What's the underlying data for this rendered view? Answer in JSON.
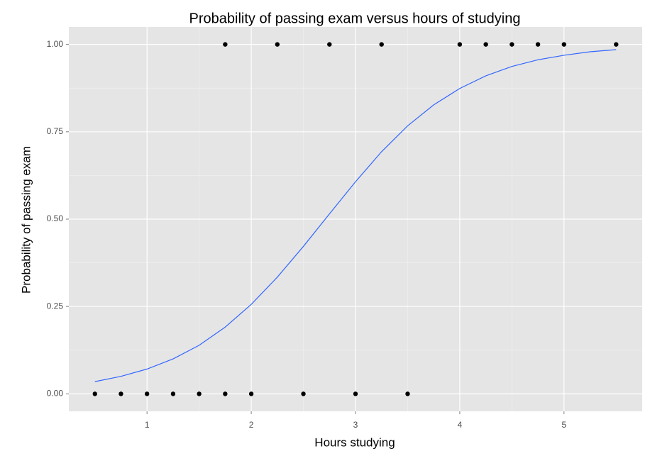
{
  "chart_data": {
    "type": "scatter",
    "title": "Probability of passing exam versus hours of studying",
    "x_label": "Hours studying",
    "y_label": "Probability of passing exam",
    "xlim": [
      0.25,
      5.75
    ],
    "xticks": [
      1,
      2,
      3,
      4,
      5
    ],
    "ylim": [
      -0.05,
      1.05
    ],
    "yticks": [
      {
        "value": 0,
        "label": "0.00"
      },
      {
        "value": 0.25,
        "label": "0.25"
      },
      {
        "value": 0.5,
        "label": "0.50"
      },
      {
        "value": 0.75,
        "label": "0.75"
      },
      {
        "value": 1,
        "label": "1.00"
      }
    ],
    "grid": true,
    "series": [
      {
        "type": "scatter",
        "color": "#000000",
        "x": [
          0.5,
          0.75,
          1.0,
          1.25,
          1.5,
          1.75,
          1.75,
          2.0,
          2.25,
          2.5,
          2.75,
          3.0,
          3.25,
          3.5,
          4.0,
          4.25,
          4.5,
          4.75,
          5.0,
          5.5
        ],
        "values": [
          0,
          0,
          0,
          0,
          0,
          0,
          1,
          0,
          1,
          0,
          1,
          0,
          1,
          0,
          1,
          1,
          1,
          1,
          1,
          1
        ]
      },
      {
        "type": "line",
        "color": "#3366ff",
        "x": [
          0.5,
          0.75,
          1.0,
          1.25,
          1.5,
          1.75,
          2.0,
          2.25,
          2.5,
          2.75,
          3.0,
          3.25,
          3.5,
          3.75,
          4.0,
          4.25,
          4.5,
          4.75,
          5.0,
          5.25,
          5.5
        ],
        "values": [
          0.035,
          0.05,
          0.071,
          0.1,
          0.139,
          0.191,
          0.256,
          0.334,
          0.422,
          0.515,
          0.607,
          0.693,
          0.767,
          0.827,
          0.874,
          0.91,
          0.937,
          0.956,
          0.969,
          0.979,
          0.985
        ]
      }
    ]
  }
}
